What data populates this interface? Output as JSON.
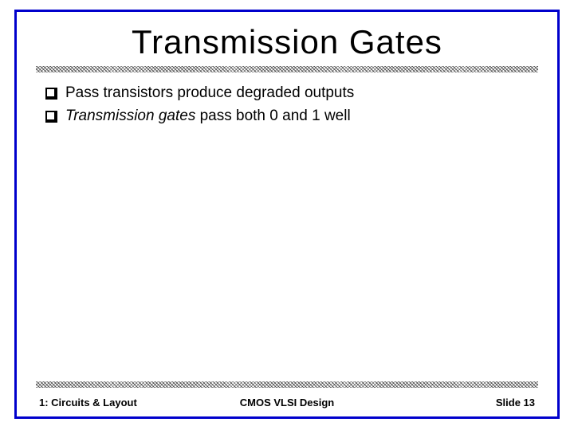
{
  "slide": {
    "title": "Transmission Gates",
    "title_fontsize": 42,
    "title_color": "#000000",
    "border_color": "#0000cc",
    "background_color": "#ffffff",
    "bullets": [
      {
        "prefix": "",
        "italic_part": "",
        "text": "Pass transistors produce degraded outputs"
      },
      {
        "prefix": "",
        "italic_part": "Transmission gates",
        "text": " pass both 0 and 1 well"
      }
    ],
    "bullet_fontsize": 19,
    "divider_pattern_color": "#808080"
  },
  "footer": {
    "left": "1: Circuits & Layout",
    "center": "CMOS VLSI Design",
    "right": "Slide 13",
    "fontsize": 13
  }
}
